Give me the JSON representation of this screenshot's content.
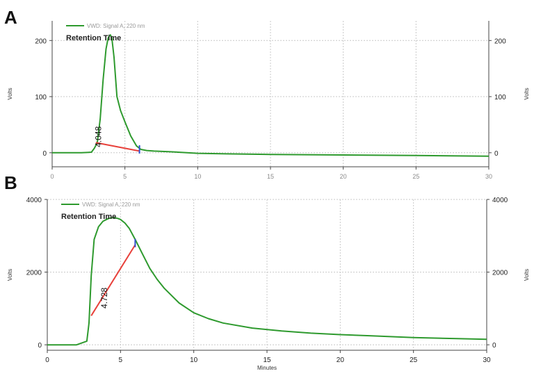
{
  "chart_data": [
    {
      "panel": "A",
      "type": "line",
      "legend": "VWD: Signal A, 220 nm",
      "legend_position": "top-left",
      "annotation_title": "Retention Time",
      "ylabel": "Volts",
      "ylabel_right": "Volts",
      "xlabel": "",
      "xlim": [
        0,
        30
      ],
      "ylim": [
        -25,
        235
      ],
      "x_ticks": [
        0,
        5,
        10,
        15,
        20,
        25,
        30
      ],
      "y_ticks": [
        0,
        100,
        200
      ],
      "grid": true,
      "series": [
        {
          "color": "#2e9a2e",
          "x": [
            0,
            1,
            2,
            2.7,
            2.9,
            3.1,
            3.3,
            3.5,
            3.7,
            3.85,
            4.0,
            4.1,
            4.25,
            4.45,
            4.7,
            5.0,
            5.4,
            5.8,
            6.1,
            6.5,
            7,
            8,
            10,
            12,
            15,
            20,
            25,
            30
          ],
          "y": [
            0,
            0,
            0,
            1,
            8,
            18,
            60,
            130,
            185,
            205,
            210,
            205,
            170,
            100,
            75,
            55,
            30,
            12,
            6,
            4,
            3,
            2,
            -1,
            -2,
            -3,
            -4,
            -5,
            -6
          ]
        }
      ],
      "baseline": {
        "color": "#e8403a",
        "x": [
          3.0,
          6.0
        ],
        "y": [
          18,
          3
        ]
      },
      "markers": [
        {
          "color": "#3050d0",
          "x": 6.0,
          "y": 6
        }
      ],
      "peak_labels": [
        {
          "text": "4.048",
          "x": 4.0,
          "y": 10
        }
      ]
    },
    {
      "panel": "B",
      "type": "line",
      "legend": "VWD: Signal A, 220 nm",
      "legend_position": "top-left",
      "annotation_title": "Retention Time",
      "ylabel": "Volts",
      "ylabel_right": "Volts",
      "xlabel": "Minutes",
      "xlim": [
        0,
        30
      ],
      "ylim": [
        -150,
        4000
      ],
      "x_ticks": [
        0,
        5,
        10,
        15,
        20,
        25,
        30
      ],
      "y_ticks": [
        0,
        2000,
        4000
      ],
      "grid": true,
      "series": [
        {
          "color": "#2e9a2e",
          "x": [
            0,
            1,
            2,
            2.7,
            2.85,
            3.0,
            3.2,
            3.5,
            3.8,
            4.2,
            4.5,
            4.8,
            5.0,
            5.3,
            5.6,
            6.0,
            6.5,
            7,
            7.5,
            8,
            9,
            10,
            11,
            12,
            14,
            16,
            18,
            20,
            22,
            25,
            28,
            30
          ],
          "y": [
            0,
            0,
            0,
            100,
            600,
            1900,
            2900,
            3250,
            3400,
            3480,
            3500,
            3480,
            3450,
            3350,
            3200,
            2900,
            2500,
            2100,
            1800,
            1550,
            1150,
            880,
            720,
            600,
            460,
            380,
            320,
            280,
            250,
            200,
            170,
            150
          ]
        }
      ],
      "baseline": {
        "color": "#e8403a",
        "x": [
          3.0,
          6.0
        ],
        "y": [
          800,
          2750
        ]
      },
      "markers": [
        {
          "color": "#3050d0",
          "x": 6.0,
          "y": 2800
        }
      ],
      "peak_labels": [
        {
          "text": "4.728",
          "x": 4.7,
          "y": 1000
        }
      ]
    }
  ],
  "panels": {
    "a_letter": "A",
    "b_letter": "B"
  }
}
